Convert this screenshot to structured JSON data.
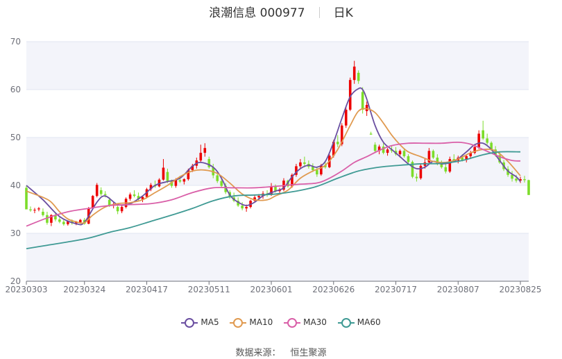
{
  "header": {
    "title": "浪潮信息 000977",
    "period": "日K"
  },
  "source": {
    "label": "数据来源：",
    "name": "恒生聚源"
  },
  "colors": {
    "up": "#ec0000",
    "down": "#7cdc2a",
    "ma5": "#6a4ea0",
    "ma10": "#e09a50",
    "ma30": "#d95fa8",
    "ma60": "#3f9a94",
    "band": "#f3f4fa",
    "grid": "#e0e6f1",
    "axis": "#6e7079"
  },
  "legend": [
    {
      "key": "ma5",
      "label": "MA5"
    },
    {
      "key": "ma10",
      "label": "MA10"
    },
    {
      "key": "ma30",
      "label": "MA30"
    },
    {
      "key": "ma60",
      "label": "MA60"
    }
  ],
  "chart_data": {
    "type": "candlestick",
    "title": "浪潮信息 000977",
    "ylim": [
      20,
      70
    ],
    "yticks": [
      20,
      30,
      40,
      50,
      60,
      70
    ],
    "xtick_labels": [
      "20230303",
      "20230324",
      "20230417",
      "20230511",
      "20230601",
      "20230626",
      "20230717",
      "20230807",
      "20230825"
    ],
    "xtick_indices": [
      0,
      14,
      29,
      44,
      59,
      74,
      89,
      104,
      119
    ],
    "candles_ohlc": [
      [
        39.5,
        40.0,
        36.0,
        35.0
      ],
      [
        35.0,
        35.6,
        34.5,
        34.8
      ],
      [
        34.8,
        35.3,
        34.2,
        34.9
      ],
      [
        35.0,
        35.5,
        34.6,
        35.2
      ],
      [
        34.5,
        35.2,
        33.5,
        33.8
      ],
      [
        33.8,
        34.5,
        31.8,
        32.2
      ],
      [
        32.2,
        34.0,
        31.5,
        33.8
      ],
      [
        33.8,
        34.2,
        32.5,
        32.9
      ],
      [
        32.9,
        33.3,
        32.1,
        32.4
      ],
      [
        32.4,
        32.8,
        31.6,
        31.9
      ],
      [
        31.9,
        32.7,
        31.6,
        32.5
      ],
      [
        32.5,
        32.9,
        31.8,
        32.1
      ],
      [
        32.1,
        32.6,
        31.7,
        32.3
      ],
      [
        32.3,
        33.0,
        32.0,
        32.8
      ],
      [
        32.8,
        33.2,
        31.8,
        32.0
      ],
      [
        32.0,
        35.5,
        31.9,
        35.2
      ],
      [
        35.2,
        38.0,
        35.0,
        37.8
      ],
      [
        37.8,
        40.5,
        37.5,
        40.1
      ],
      [
        39.0,
        39.6,
        37.8,
        38.2
      ],
      [
        38.2,
        38.8,
        37.5,
        38.0
      ],
      [
        37.0,
        37.5,
        35.5,
        35.8
      ],
      [
        35.8,
        36.5,
        35.2,
        36.1
      ],
      [
        35.5,
        36.0,
        34.0,
        34.6
      ],
      [
        34.6,
        35.8,
        34.2,
        35.5
      ],
      [
        35.5,
        37.5,
        35.2,
        37.2
      ],
      [
        37.2,
        38.5,
        36.8,
        38.1
      ],
      [
        38.1,
        39.0,
        37.5,
        37.8
      ],
      [
        37.8,
        38.5,
        36.8,
        37.1
      ],
      [
        37.1,
        37.8,
        36.5,
        37.6
      ],
      [
        37.6,
        39.5,
        37.3,
        39.2
      ],
      [
        39.2,
        40.5,
        38.8,
        40.1
      ],
      [
        40.1,
        41.0,
        39.5,
        39.8
      ],
      [
        39.8,
        41.5,
        39.6,
        41.2
      ],
      [
        41.2,
        45.5,
        41.0,
        43.7
      ],
      [
        42.8,
        43.5,
        40.5,
        40.9
      ],
      [
        40.9,
        41.2,
        39.5,
        39.9
      ],
      [
        39.9,
        41.5,
        39.5,
        41.1
      ],
      [
        41.1,
        42.0,
        40.5,
        40.8
      ],
      [
        40.8,
        41.5,
        40.2,
        41.3
      ],
      [
        41.3,
        43.5,
        41.0,
        43.2
      ],
      [
        43.2,
        44.5,
        42.8,
        44.1
      ],
      [
        44.1,
        45.8,
        43.5,
        45.2
      ],
      [
        45.2,
        48.5,
        44.8,
        46.8
      ],
      [
        46.8,
        48.8,
        46.0,
        47.8
      ],
      [
        45.5,
        46.0,
        43.5,
        43.8
      ],
      [
        43.8,
        44.5,
        41.5,
        42.1
      ],
      [
        42.1,
        42.8,
        40.5,
        40.9
      ],
      [
        40.9,
        41.5,
        39.5,
        39.9
      ],
      [
        39.9,
        40.5,
        38.2,
        38.6
      ],
      [
        38.6,
        39.0,
        37.2,
        37.5
      ],
      [
        37.5,
        38.5,
        36.5,
        36.8
      ],
      [
        36.8,
        37.5,
        35.5,
        35.8
      ],
      [
        35.8,
        36.5,
        34.8,
        35.2
      ],
      [
        35.2,
        36.0,
        34.5,
        35.5
      ],
      [
        35.5,
        37.0,
        35.2,
        36.8
      ],
      [
        36.8,
        38.0,
        36.5,
        37.5
      ],
      [
        37.5,
        38.2,
        37.0,
        37.8
      ],
      [
        37.8,
        38.8,
        37.2,
        38.3
      ],
      [
        38.3,
        39.0,
        37.6,
        38.0
      ],
      [
        38.0,
        40.5,
        37.8,
        39.8
      ],
      [
        39.8,
        40.2,
        38.5,
        38.8
      ],
      [
        38.8,
        39.5,
        38.3,
        39.1
      ],
      [
        39.1,
        41.5,
        38.8,
        41.0
      ],
      [
        41.0,
        41.2,
        39.5,
        39.8
      ],
      [
        39.8,
        42.5,
        39.5,
        42.2
      ],
      [
        42.2,
        44.5,
        41.8,
        44.0
      ],
      [
        44.0,
        45.5,
        43.5,
        44.8
      ],
      [
        44.8,
        46.0,
        43.8,
        44.5
      ],
      [
        44.5,
        45.2,
        43.5,
        43.9
      ],
      [
        43.9,
        44.6,
        42.8,
        43.2
      ],
      [
        43.2,
        43.8,
        41.8,
        42.3
      ],
      [
        42.3,
        44.5,
        42.0,
        44.2
      ],
      [
        44.2,
        45.0,
        43.5,
        43.8
      ],
      [
        43.8,
        46.5,
        43.6,
        46.2
      ],
      [
        46.2,
        49.5,
        45.8,
        49.1
      ],
      [
        49.1,
        50.5,
        48.0,
        48.6
      ],
      [
        48.6,
        53.0,
        48.2,
        52.5
      ],
      [
        52.5,
        56.5,
        52.0,
        55.8
      ],
      [
        55.8,
        62.5,
        55.5,
        62.0
      ],
      [
        62.0,
        66.0,
        61.2,
        64.8
      ],
      [
        63.5,
        64.0,
        61.2,
        61.8
      ],
      [
        59.5,
        60.5,
        55.0,
        55.8
      ],
      [
        55.5,
        57.5,
        54.5,
        56.8
      ],
      [
        50.8,
        51.2,
        50.6,
        50.6
      ],
      [
        48.5,
        49.0,
        46.8,
        47.2
      ],
      [
        47.2,
        48.5,
        46.5,
        48.1
      ],
      [
        48.1,
        48.8,
        46.5,
        46.8
      ],
      [
        46.8,
        47.8,
        46.2,
        47.5
      ],
      [
        47.5,
        48.2,
        46.8,
        47.2
      ],
      [
        47.2,
        48.0,
        46.2,
        46.5
      ],
      [
        46.5,
        47.5,
        45.8,
        47.2
      ],
      [
        47.2,
        47.8,
        45.8,
        46.1
      ],
      [
        46.1,
        46.5,
        44.5,
        44.9
      ],
      [
        44.9,
        45.2,
        41.5,
        41.8
      ],
      [
        41.8,
        42.5,
        40.8,
        41.5
      ],
      [
        41.5,
        44.5,
        41.2,
        44.1
      ],
      [
        44.1,
        45.5,
        43.5,
        44.8
      ],
      [
        44.8,
        47.8,
        44.5,
        47.2
      ],
      [
        47.2,
        47.5,
        45.5,
        45.8
      ],
      [
        45.8,
        46.5,
        44.2,
        44.6
      ],
      [
        44.6,
        45.2,
        43.5,
        43.8
      ],
      [
        43.8,
        44.5,
        42.5,
        42.9
      ],
      [
        42.9,
        46.0,
        42.6,
        45.5
      ],
      [
        45.5,
        46.5,
        44.8,
        45.2
      ],
      [
        45.2,
        46.2,
        44.6,
        45.8
      ],
      [
        45.8,
        46.5,
        45.0,
        45.3
      ],
      [
        45.3,
        46.5,
        44.8,
        46.1
      ],
      [
        46.1,
        47.2,
        45.5,
        46.8
      ],
      [
        46.8,
        48.5,
        46.5,
        48.0
      ],
      [
        48.0,
        51.5,
        47.6,
        50.8
      ],
      [
        51.5,
        53.5,
        49.5,
        49.8
      ],
      [
        49.8,
        50.8,
        48.5,
        48.9
      ],
      [
        48.9,
        49.2,
        47.2,
        47.5
      ],
      [
        47.5,
        48.2,
        46.0,
        46.3
      ],
      [
        46.3,
        47.0,
        44.5,
        44.8
      ],
      [
        44.8,
        45.3,
        43.0,
        43.4
      ],
      [
        43.4,
        44.0,
        41.8,
        42.2
      ],
      [
        42.2,
        43.0,
        40.8,
        41.4
      ],
      [
        41.4,
        42.2,
        40.6,
        41.0
      ],
      [
        41.0,
        41.8,
        40.5,
        41.3
      ],
      [
        41.3,
        42.0,
        40.6,
        41.1
      ],
      [
        41.1,
        41.2,
        38.0,
        38.0
      ]
    ],
    "series": [
      {
        "name": "MA5",
        "key": "ma5",
        "points": [
          [
            0,
            40.0
          ],
          [
            4,
            37.0
          ],
          [
            8,
            33.5
          ],
          [
            12,
            32.0
          ],
          [
            14,
            32.3
          ],
          [
            17,
            36.5
          ],
          [
            19,
            37.8
          ],
          [
            22,
            36.0
          ],
          [
            25,
            36.2
          ],
          [
            28,
            37.8
          ],
          [
            31,
            40.0
          ],
          [
            34,
            40.8
          ],
          [
            37,
            41.5
          ],
          [
            40,
            44.0
          ],
          [
            42,
            44.8
          ],
          [
            45,
            43.8
          ],
          [
            47,
            41.5
          ],
          [
            49,
            38.0
          ],
          [
            51,
            36.5
          ],
          [
            53,
            35.8
          ],
          [
            55,
            36.5
          ],
          [
            57,
            37.8
          ],
          [
            60,
            38.8
          ],
          [
            62,
            39.5
          ],
          [
            64,
            41.8
          ],
          [
            66,
            43.5
          ],
          [
            68,
            44.2
          ],
          [
            70,
            43.8
          ],
          [
            72,
            45.0
          ],
          [
            74,
            49.0
          ],
          [
            76,
            54.0
          ],
          [
            78,
            58.5
          ],
          [
            80,
            60.2
          ],
          [
            81,
            60.0
          ],
          [
            82,
            58.0
          ],
          [
            84,
            52.5
          ],
          [
            86,
            49.0
          ],
          [
            88,
            47.5
          ],
          [
            90,
            46.0
          ],
          [
            92,
            44.5
          ],
          [
            94,
            43.5
          ],
          [
            96,
            43.8
          ],
          [
            98,
            45.0
          ],
          [
            100,
            44.5
          ],
          [
            103,
            45.0
          ],
          [
            106,
            47.0
          ],
          [
            108,
            48.5
          ],
          [
            110,
            48.8
          ],
          [
            112,
            47.5
          ],
          [
            114,
            45.2
          ],
          [
            116,
            43.0
          ],
          [
            118,
            41.8
          ],
          [
            119,
            40.8
          ]
        ]
      },
      {
        "name": "MA10",
        "key": "ma10",
        "points": [
          [
            0,
            38.8
          ],
          [
            4,
            37.5
          ],
          [
            6,
            36.5
          ],
          [
            8,
            34.5
          ],
          [
            10,
            33.0
          ],
          [
            12,
            32.4
          ],
          [
            14,
            32.2
          ],
          [
            16,
            33.8
          ],
          [
            19,
            35.5
          ],
          [
            22,
            36.2
          ],
          [
            25,
            36.4
          ],
          [
            28,
            37.0
          ],
          [
            31,
            38.5
          ],
          [
            34,
            40.0
          ],
          [
            37,
            41.8
          ],
          [
            40,
            43.0
          ],
          [
            43,
            43.2
          ],
          [
            46,
            42.5
          ],
          [
            49,
            40.5
          ],
          [
            52,
            38.2
          ],
          [
            55,
            37.0
          ],
          [
            58,
            37.0
          ],
          [
            60,
            37.8
          ],
          [
            63,
            39.0
          ],
          [
            66,
            41.5
          ],
          [
            69,
            43.0
          ],
          [
            72,
            44.2
          ],
          [
            75,
            47.5
          ],
          [
            78,
            52.5
          ],
          [
            80,
            55.5
          ],
          [
            82,
            56.0
          ],
          [
            84,
            55.2
          ],
          [
            86,
            53.0
          ],
          [
            88,
            50.5
          ],
          [
            90,
            48.5
          ],
          [
            92,
            47.0
          ],
          [
            95,
            46.0
          ],
          [
            98,
            45.0
          ],
          [
            101,
            44.8
          ],
          [
            104,
            45.5
          ],
          [
            107,
            46.8
          ],
          [
            110,
            47.5
          ],
          [
            113,
            47.2
          ],
          [
            116,
            45.0
          ],
          [
            119,
            42.0
          ]
        ]
      },
      {
        "name": "MA30",
        "key": "ma30",
        "points": [
          [
            0,
            31.5
          ],
          [
            5,
            33.2
          ],
          [
            10,
            34.5
          ],
          [
            15,
            35.2
          ],
          [
            20,
            35.8
          ],
          [
            25,
            36.0
          ],
          [
            30,
            36.2
          ],
          [
            35,
            37.0
          ],
          [
            40,
            38.5
          ],
          [
            45,
            39.5
          ],
          [
            50,
            39.5
          ],
          [
            55,
            39.5
          ],
          [
            60,
            39.8
          ],
          [
            65,
            40.2
          ],
          [
            70,
            40.5
          ],
          [
            73,
            41.5
          ],
          [
            76,
            43.0
          ],
          [
            79,
            44.8
          ],
          [
            82,
            46.0
          ],
          [
            85,
            47.3
          ],
          [
            88,
            48.3
          ],
          [
            92,
            48.8
          ],
          [
            96,
            48.8
          ],
          [
            100,
            48.8
          ],
          [
            104,
            49.0
          ],
          [
            107,
            48.6
          ],
          [
            110,
            47.5
          ],
          [
            114,
            46.0
          ],
          [
            117,
            45.2
          ],
          [
            119,
            45.1
          ]
        ]
      },
      {
        "name": "MA60",
        "key": "ma60",
        "points": [
          [
            0,
            26.8
          ],
          [
            5,
            27.5
          ],
          [
            10,
            28.2
          ],
          [
            15,
            29.0
          ],
          [
            20,
            30.2
          ],
          [
            25,
            31.2
          ],
          [
            30,
            32.5
          ],
          [
            35,
            33.8
          ],
          [
            40,
            35.2
          ],
          [
            45,
            36.8
          ],
          [
            50,
            37.8
          ],
          [
            55,
            38.0
          ],
          [
            60,
            38.2
          ],
          [
            65,
            38.8
          ],
          [
            70,
            39.8
          ],
          [
            75,
            41.5
          ],
          [
            80,
            43.0
          ],
          [
            85,
            43.8
          ],
          [
            90,
            44.2
          ],
          [
            95,
            44.5
          ],
          [
            100,
            44.6
          ],
          [
            105,
            45.2
          ],
          [
            110,
            46.4
          ],
          [
            114,
            47.0
          ],
          [
            119,
            47.0
          ]
        ]
      }
    ]
  }
}
